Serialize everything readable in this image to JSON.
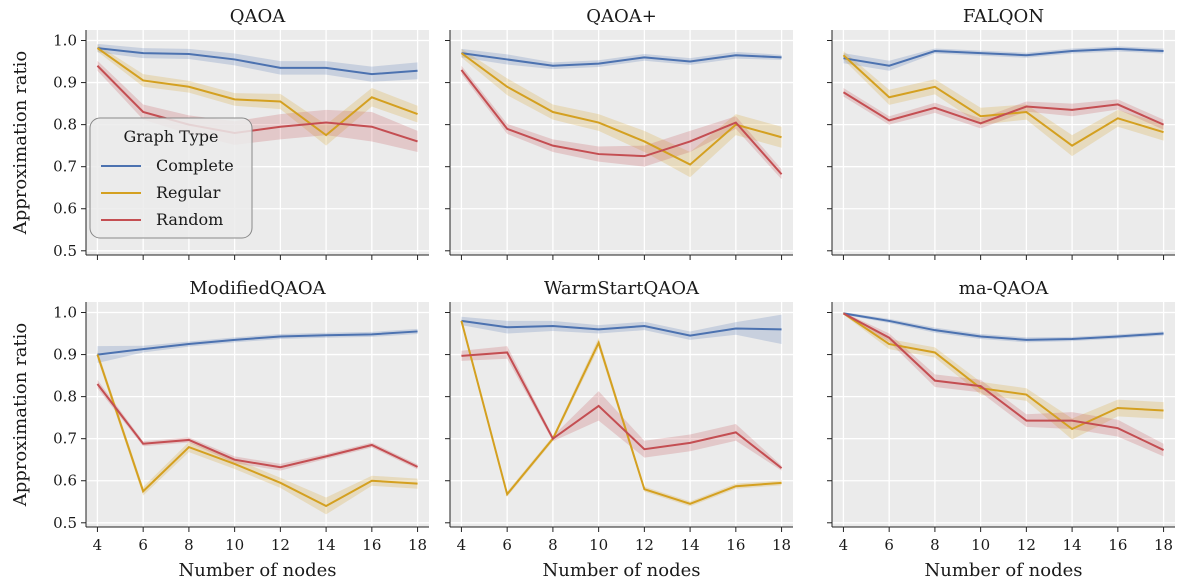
{
  "chart_data": {
    "type": "line",
    "x": [
      4,
      6,
      8,
      10,
      12,
      14,
      16,
      18
    ],
    "xlim": [
      3.5,
      18.5
    ],
    "ylim": [
      0.49,
      1.025
    ],
    "xticks": [
      4,
      6,
      8,
      10,
      12,
      14,
      16,
      18
    ],
    "yticks": [
      0.5,
      0.6,
      0.7,
      0.8,
      0.9,
      1.0
    ],
    "xlabel": "Number of nodes",
    "ylabel": "Approximation ratio",
    "grid": true,
    "legend": {
      "title": "Graph Type",
      "placement": "lower-left of first panel",
      "entries": [
        "Complete",
        "Regular",
        "Random"
      ]
    },
    "colors": {
      "Complete": "#4C72B0",
      "Regular": "#D4A020",
      "Random": "#C44E52",
      "background": "#EBEBEB",
      "grid": "#FFFFFF"
    },
    "panels": [
      {
        "title": "QAOA",
        "series": [
          {
            "name": "Complete",
            "values": [
              0.982,
              0.97,
              0.968,
              0.955,
              0.935,
              0.935,
              0.92,
              0.928
            ],
            "band": [
              0.01,
              0.012,
              0.012,
              0.014,
              0.016,
              0.016,
              0.018,
              0.02
            ]
          },
          {
            "name": "Regular",
            "values": [
              0.982,
              0.905,
              0.89,
              0.86,
              0.855,
              0.775,
              0.865,
              0.825
            ],
            "band": [
              0.008,
              0.015,
              0.014,
              0.015,
              0.018,
              0.025,
              0.022,
              0.02
            ]
          },
          {
            "name": "Random",
            "values": [
              0.94,
              0.83,
              0.8,
              0.78,
              0.795,
              0.805,
              0.795,
              0.76
            ],
            "band": [
              0.012,
              0.018,
              0.022,
              0.028,
              0.03,
              0.03,
              0.035,
              0.025
            ]
          }
        ]
      },
      {
        "title": "QAOA+",
        "series": [
          {
            "name": "Complete",
            "values": [
              0.97,
              0.955,
              0.94,
              0.945,
              0.96,
              0.95,
              0.965,
              0.96
            ],
            "band": [
              0.01,
              0.012,
              0.008,
              0.008,
              0.008,
              0.008,
              0.008,
              0.006
            ]
          },
          {
            "name": "Regular",
            "values": [
              0.97,
              0.89,
              0.83,
              0.805,
              0.76,
              0.705,
              0.8,
              0.77
            ],
            "band": [
              0.01,
              0.02,
              0.018,
              0.02,
              0.025,
              0.03,
              0.025,
              0.025
            ]
          },
          {
            "name": "Random",
            "values": [
              0.93,
              0.79,
              0.75,
              0.73,
              0.725,
              0.76,
              0.805,
              0.682
            ],
            "band": [
              0.01,
              0.012,
              0.015,
              0.018,
              0.025,
              0.025,
              0.015,
              0.012
            ]
          }
        ]
      },
      {
        "title": "FALQON",
        "series": [
          {
            "name": "Complete",
            "values": [
              0.958,
              0.94,
              0.975,
              0.97,
              0.965,
              0.975,
              0.98,
              0.975
            ],
            "band": [
              0.012,
              0.012,
              0.006,
              0.006,
              0.006,
              0.006,
              0.006,
              0.006
            ]
          },
          {
            "name": "Regular",
            "values": [
              0.965,
              0.865,
              0.89,
              0.82,
              0.83,
              0.75,
              0.815,
              0.782
            ],
            "band": [
              0.01,
              0.018,
              0.018,
              0.02,
              0.018,
              0.025,
              0.02,
              0.02
            ]
          },
          {
            "name": "Random",
            "values": [
              0.877,
              0.81,
              0.84,
              0.803,
              0.843,
              0.835,
              0.848,
              0.8
            ],
            "band": [
              0.01,
              0.01,
              0.012,
              0.012,
              0.012,
              0.015,
              0.012,
              0.012
            ]
          }
        ]
      },
      {
        "title": "ModifiedQAOA",
        "series": [
          {
            "name": "Complete",
            "values": [
              0.9,
              0.913,
              0.925,
              0.935,
              0.943,
              0.946,
              0.948,
              0.955
            ],
            "band": [
              0.02,
              0.008,
              0.006,
              0.006,
              0.006,
              0.006,
              0.006,
              0.006
            ]
          },
          {
            "name": "Regular",
            "values": [
              0.9,
              0.575,
              0.68,
              0.64,
              0.595,
              0.54,
              0.6,
              0.593
            ],
            "band": [
              0.01,
              0.01,
              0.012,
              0.012,
              0.012,
              0.02,
              0.012,
              0.012
            ]
          },
          {
            "name": "Random",
            "values": [
              0.83,
              0.688,
              0.697,
              0.65,
              0.632,
              0.658,
              0.685,
              0.633
            ],
            "band": [
              0.01,
              0.006,
              0.006,
              0.008,
              0.008,
              0.006,
              0.006,
              0.006
            ]
          }
        ]
      },
      {
        "title": "WarmStartQAOA",
        "series": [
          {
            "name": "Complete",
            "values": [
              0.98,
              0.965,
              0.968,
              0.96,
              0.968,
              0.945,
              0.962,
              0.96
            ],
            "band": [
              0.01,
              0.015,
              0.012,
              0.01,
              0.01,
              0.01,
              0.015,
              0.035
            ]
          },
          {
            "name": "Regular",
            "values": [
              0.98,
              0.568,
              0.7,
              0.928,
              0.58,
              0.545,
              0.587,
              0.595
            ],
            "band": [
              0.006,
              0.006,
              0.006,
              0.012,
              0.006,
              0.006,
              0.006,
              0.006
            ]
          },
          {
            "name": "Random",
            "values": [
              0.897,
              0.905,
              0.7,
              0.778,
              0.675,
              0.69,
              0.715,
              0.63
            ],
            "band": [
              0.012,
              0.015,
              0.006,
              0.035,
              0.02,
              0.02,
              0.02,
              0.006
            ]
          }
        ]
      },
      {
        "title": "ma-QAOA",
        "series": [
          {
            "name": "Complete",
            "values": [
              0.998,
              0.98,
              0.958,
              0.943,
              0.935,
              0.937,
              0.943,
              0.95
            ],
            "band": [
              0.003,
              0.005,
              0.006,
              0.006,
              0.006,
              0.005,
              0.005,
              0.005
            ]
          },
          {
            "name": "Regular",
            "values": [
              0.998,
              0.925,
              0.905,
              0.82,
              0.805,
              0.723,
              0.773,
              0.767
            ],
            "band": [
              0.003,
              0.012,
              0.012,
              0.015,
              0.015,
              0.025,
              0.02,
              0.02
            ]
          },
          {
            "name": "Random",
            "values": [
              0.998,
              0.94,
              0.838,
              0.825,
              0.743,
              0.743,
              0.725,
              0.673
            ],
            "band": [
              0.003,
              0.01,
              0.015,
              0.015,
              0.015,
              0.02,
              0.02,
              0.015
            ]
          }
        ]
      }
    ]
  }
}
